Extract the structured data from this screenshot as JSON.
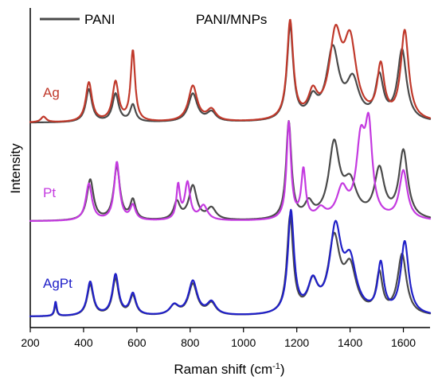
{
  "chart_data": {
    "type": "line",
    "title": "",
    "xlabel": "Raman shift (cm",
    "xlabel_sup": "-1",
    "xlabel_close": ")",
    "ylabel": "Intensity",
    "xlim": [
      200,
      1700
    ],
    "xticks": [
      200,
      400,
      600,
      800,
      1000,
      1200,
      1400,
      1600
    ],
    "legend": {
      "placement": "top",
      "entries": [
        {
          "name": "PANI",
          "color": "#4a4a4a"
        },
        {
          "name": "PANI/MNPs",
          "gradient": [
            "#d94f3a",
            "#c43ae0",
            "#2020c8"
          ]
        }
      ]
    },
    "panels": [
      {
        "label": "Ag",
        "color": "#c0392b",
        "reference_color": "#4a4a4a",
        "baseline": 0.0,
        "peaks_reference": [
          [
            420,
            0.35,
            14
          ],
          [
            520,
            0.3,
            14
          ],
          [
            585,
            0.18,
            12
          ],
          [
            810,
            0.3,
            20
          ],
          [
            880,
            0.1,
            20
          ],
          [
            1175,
            1.0,
            14
          ],
          [
            1260,
            0.2,
            20
          ],
          [
            1335,
            0.75,
            28
          ],
          [
            1410,
            0.4,
            28
          ],
          [
            1510,
            0.45,
            18
          ],
          [
            1595,
            0.75,
            20
          ]
        ],
        "peaks_sample": [
          [
            250,
            0.06,
            12
          ],
          [
            420,
            0.42,
            14
          ],
          [
            520,
            0.42,
            14
          ],
          [
            585,
            0.75,
            10
          ],
          [
            810,
            0.38,
            20
          ],
          [
            880,
            0.12,
            20
          ],
          [
            1175,
            1.05,
            14
          ],
          [
            1260,
            0.25,
            20
          ],
          [
            1345,
            0.85,
            28
          ],
          [
            1400,
            0.78,
            28
          ],
          [
            1515,
            0.55,
            16
          ],
          [
            1605,
            0.95,
            18
          ]
        ]
      },
      {
        "label": "Pt",
        "color": "#c43ae0",
        "reference_color": "#4a4a4a",
        "baseline": 0.0,
        "peaks_reference": [
          [
            425,
            0.42,
            15
          ],
          [
            525,
            0.55,
            14
          ],
          [
            585,
            0.2,
            12
          ],
          [
            750,
            0.18,
            14
          ],
          [
            810,
            0.35,
            18
          ],
          [
            880,
            0.12,
            20
          ],
          [
            1170,
            1.0,
            12
          ],
          [
            1245,
            0.15,
            18
          ],
          [
            1340,
            0.75,
            24
          ],
          [
            1400,
            0.35,
            30
          ],
          [
            1510,
            0.5,
            22
          ],
          [
            1600,
            0.7,
            20
          ]
        ],
        "peaks_sample": [
          [
            420,
            0.38,
            14
          ],
          [
            525,
            0.6,
            12
          ],
          [
            585,
            0.15,
            12
          ],
          [
            755,
            0.35,
            8
          ],
          [
            790,
            0.38,
            12
          ],
          [
            850,
            0.15,
            18
          ],
          [
            1170,
            1.0,
            10
          ],
          [
            1225,
            0.5,
            10
          ],
          [
            1290,
            0.1,
            20
          ],
          [
            1370,
            0.3,
            24
          ],
          [
            1440,
            0.75,
            20
          ],
          [
            1470,
            0.85,
            16
          ],
          [
            1600,
            0.5,
            18
          ]
        ]
      },
      {
        "label": "AgPt",
        "color": "#2020c8",
        "reference_color": "#4a4a4a",
        "baseline": 0.0,
        "peaks_reference": [
          [
            295,
            0.12,
            5
          ],
          [
            425,
            0.32,
            14
          ],
          [
            520,
            0.38,
            14
          ],
          [
            585,
            0.2,
            14
          ],
          [
            740,
            0.1,
            20
          ],
          [
            810,
            0.32,
            20
          ],
          [
            880,
            0.12,
            20
          ],
          [
            1175,
            1.0,
            14
          ],
          [
            1260,
            0.3,
            22
          ],
          [
            1340,
            0.75,
            26
          ],
          [
            1400,
            0.45,
            28
          ],
          [
            1510,
            0.4,
            14
          ],
          [
            1595,
            0.62,
            20
          ]
        ],
        "peaks_sample": [
          [
            295,
            0.15,
            5
          ],
          [
            425,
            0.35,
            14
          ],
          [
            520,
            0.42,
            14
          ],
          [
            585,
            0.22,
            14
          ],
          [
            740,
            0.1,
            20
          ],
          [
            810,
            0.35,
            20
          ],
          [
            880,
            0.13,
            20
          ],
          [
            1178,
            1.05,
            14
          ],
          [
            1260,
            0.3,
            22
          ],
          [
            1345,
            0.85,
            26
          ],
          [
            1400,
            0.5,
            28
          ],
          [
            1515,
            0.5,
            14
          ],
          [
            1605,
            0.75,
            18
          ]
        ]
      }
    ]
  }
}
